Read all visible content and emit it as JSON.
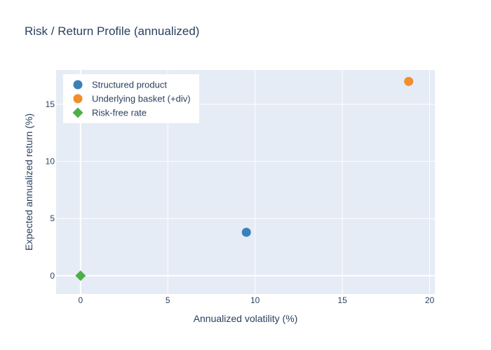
{
  "chart_data": {
    "type": "scatter",
    "title": "Risk / Return Profile (annualized)",
    "xlabel": "Annualized volatility (%)",
    "ylabel": "Expected annualized return (%)",
    "xlim": [
      -1.4,
      20.3
    ],
    "ylim": [
      -1.6,
      18.0
    ],
    "xticks": [
      0,
      5,
      10,
      15,
      20
    ],
    "yticks": [
      0,
      5,
      10,
      15
    ],
    "grid": true,
    "legend_position": "top-left",
    "series": [
      {
        "name": "Structured product",
        "color": "#3a81ba",
        "marker": "circle",
        "x": [
          9.5
        ],
        "y": [
          3.8
        ]
      },
      {
        "name": "Underlying basket (+div)",
        "color": "#f28e2b",
        "marker": "circle",
        "x": [
          18.8
        ],
        "y": [
          17.0
        ]
      },
      {
        "name": "Risk-free rate",
        "color": "#4daf4a",
        "marker": "diamond",
        "x": [
          0
        ],
        "y": [
          0
        ]
      }
    ]
  }
}
